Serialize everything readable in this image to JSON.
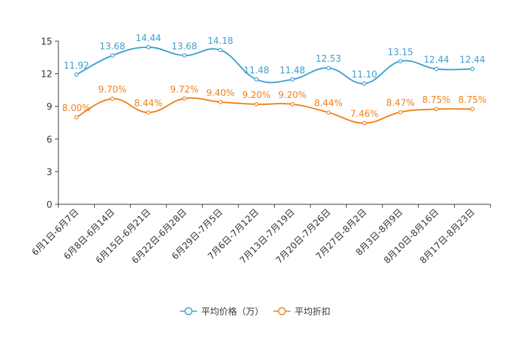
{
  "chart_data": {
    "type": "line",
    "categories": [
      "6月1日-6月7日",
      "6月8日-6月14日",
      "6月15日-6月21日",
      "6月22日-6月28日",
      "6月29日-7月5日",
      "7月6日-7月12日",
      "7月13日-7月19日",
      "7月20日-7月26日",
      "7月27日-8月2日",
      "8月3日-8月9日",
      "8月10日-8月16日",
      "8月17日-8月23日"
    ],
    "ylim": [
      0,
      15
    ],
    "yticks": [
      0,
      3,
      6,
      9,
      12,
      15
    ],
    "grid": false,
    "legend_position": "bottom-center",
    "series": [
      {
        "name": "平均价格（万）",
        "color": "#3b9fcf",
        "values": [
          11.92,
          13.68,
          14.44,
          13.68,
          14.18,
          11.48,
          11.48,
          12.53,
          11.1,
          13.15,
          12.44,
          12.44
        ],
        "labels": [
          "11.92",
          "13.68",
          "14.44",
          "13.68",
          "14.18",
          "11.48",
          "11.48",
          "12.53",
          "11.10",
          "13.15",
          "12.44",
          "12.44"
        ]
      },
      {
        "name": "平均折扣",
        "color": "#f07f19",
        "values": [
          8.0,
          9.7,
          8.44,
          9.72,
          9.4,
          9.2,
          9.2,
          8.44,
          7.46,
          8.47,
          8.75,
          8.75
        ],
        "labels": [
          "8.00%",
          "9.70%",
          "8.44%",
          "9.72%",
          "9.40%",
          "9.20%",
          "9.20%",
          "8.44%",
          "7.46%",
          "8.47%",
          "8.75%",
          "8.75%"
        ]
      }
    ]
  }
}
